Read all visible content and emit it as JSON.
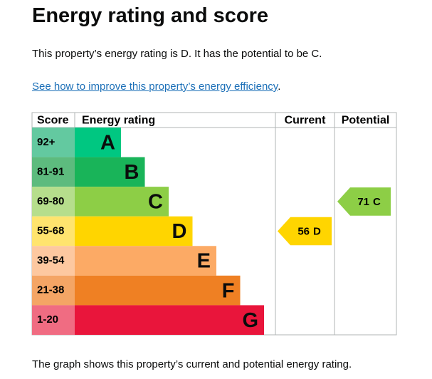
{
  "heading": "Energy rating and score",
  "intro": "This property’s energy rating is D. It has the potential to be C.",
  "link": {
    "text": "See how to improve this property’s energy efficiency",
    "after": "."
  },
  "graph": {
    "headers": [
      "Score",
      "Energy rating",
      "Current",
      "Potential"
    ],
    "bands": [
      {
        "score": "92+",
        "rating": "A",
        "color": "#00c781",
        "score_color": "#63c9a0"
      },
      {
        "score": "81-91",
        "rating": "B",
        "color": "#19b459",
        "score_color": "#5dbb7e"
      },
      {
        "score": "69-80",
        "rating": "C",
        "color": "#8dce46",
        "score_color": "#b6de8c"
      },
      {
        "score": "55-68",
        "rating": "D",
        "color": "#ffd500",
        "score_color": "#ffe46e"
      },
      {
        "score": "39-54",
        "rating": "E",
        "color": "#fcaa65",
        "score_color": "#fdc8a0"
      },
      {
        "score": "21-38",
        "rating": "F",
        "color": "#ef8023",
        "score_color": "#f4a565"
      },
      {
        "score": "1-20",
        "rating": "G",
        "color": "#e9153b",
        "score_color": "#f06c82"
      }
    ],
    "current": {
      "score": 56,
      "rating": "D"
    },
    "potential": {
      "score": 71,
      "rating": "C"
    }
  },
  "footer": "The graph shows this property’s current and potential energy rating."
}
